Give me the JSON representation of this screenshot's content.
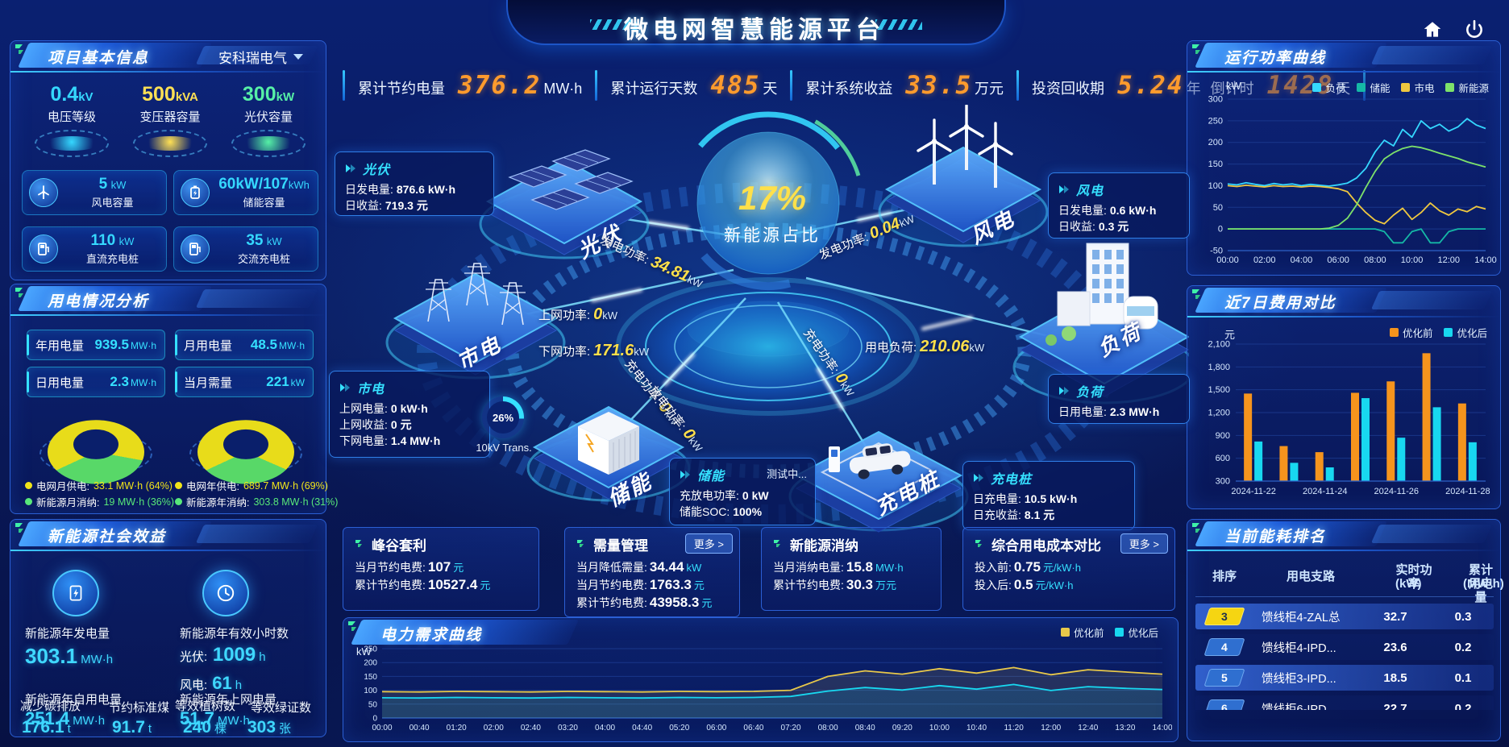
{
  "app": {
    "title": "微电网智慧能源平台"
  },
  "topbar": {
    "kpis": [
      {
        "label": "累计节约电量",
        "value": "376.2",
        "unit": "MW·h"
      },
      {
        "label": "累计运行天数",
        "value": "485",
        "unit": "天"
      },
      {
        "label": "累计系统收益",
        "value": "33.5",
        "unit": "万元"
      },
      {
        "label": "投资回收期",
        "value": "5.24",
        "unit": "年"
      },
      {
        "label": "倒计时",
        "value": "1428",
        "unit": "天"
      }
    ]
  },
  "project": {
    "title": "项目基本信息",
    "company": "安科瑞电气",
    "podiums": [
      {
        "value": "0.4",
        "unit": "kV",
        "label": "电压等级",
        "color": "#35d8ff"
      },
      {
        "value": "500",
        "unit": "kVA",
        "label": "变压器容量",
        "color": "#ffe054"
      },
      {
        "value": "300",
        "unit": "kW",
        "label": "光伏容量",
        "color": "#56f0a6"
      }
    ],
    "cards": [
      {
        "value": "5",
        "unit": "kW",
        "label": "风电容量"
      },
      {
        "value": "60kW/107",
        "unit": "kWh",
        "label": "储能容量"
      },
      {
        "value": "110",
        "unit": "kW",
        "label": "直流充电桩"
      },
      {
        "value": "35",
        "unit": "kW",
        "label": "交流充电桩"
      }
    ]
  },
  "usage": {
    "title": "用电情况分析",
    "stats": [
      {
        "label": "年用电量",
        "value": "939.5",
        "unit": "MW·h"
      },
      {
        "label": "月用电量",
        "value": "48.5",
        "unit": "MW·h"
      },
      {
        "label": "日用电量",
        "value": "2.3",
        "unit": "MW·h"
      },
      {
        "label": "当月需量",
        "value": "221",
        "unit": "kW"
      }
    ],
    "donut_month": {
      "values": [
        64,
        36
      ],
      "colors": [
        "#e8dc1a",
        "#58d868"
      ]
    },
    "donut_year": {
      "values": [
        69,
        31
      ],
      "colors": [
        "#e8dc1a",
        "#58d868"
      ]
    },
    "legend": [
      {
        "label": "电网月供电:",
        "value": "33.1 MW·h (64%)"
      },
      {
        "label": "新能源月消纳:",
        "value": "19 MW·h (36%)"
      },
      {
        "label": "电网年供电:",
        "value": "689.7 MW·h (69%)"
      },
      {
        "label": "新能源年消纳:",
        "value": "303.8 MW·h (31%)"
      }
    ]
  },
  "benefits": {
    "title": "新能源社会效益",
    "gen_label": "新能源年发电量",
    "gen_value": "303.1",
    "gen_unit": "MW·h",
    "hours_label": "新能源年有效小时数",
    "pv_hours_label": "光伏:",
    "pv_hours_value": "1009",
    "pv_hours_unit": "h",
    "wind_hours_label": "风电:",
    "wind_hours_value": "61",
    "wind_hours_unit": "h",
    "self_label": "新能源年自用电量",
    "self_value": "251.4",
    "self_unit": "MW·h",
    "carbon_label": "减少碳排放",
    "carbon_value": "176.1",
    "carbon_unit": "t",
    "coal_label": "节约标准煤",
    "coal_value": "91.7",
    "coal_unit": "t",
    "feed_label": "新能源年上网电量",
    "feed_value": "51.7",
    "feed_unit": "MW·h",
    "trees_label": "等效植树数",
    "trees_value": "240",
    "trees_unit": "棵",
    "certs_label": "等效绿证数",
    "certs_value": "303",
    "certs_unit": "张"
  },
  "center": {
    "core_value": "17%",
    "core_label": "新能源占比",
    "nodes": {
      "pv": "光伏",
      "wind": "风电",
      "grid": "市电",
      "storage": "储能",
      "charger": "充电桩",
      "load": "负荷"
    },
    "flows": {
      "pv_gen": {
        "label": "发电功率:",
        "value": "34.81",
        "unit": "kW"
      },
      "wind_gen": {
        "label": "发电功率:",
        "value": "0.04",
        "unit": "kW"
      },
      "feed_in": {
        "label": "上网功率:",
        "value": "0",
        "unit": "kW"
      },
      "feed_down": {
        "label": "下网功率:",
        "value": "171.6",
        "unit": "kW"
      },
      "load_power": {
        "label": "用电负荷:",
        "value": "210.06",
        "unit": "kW"
      },
      "st_charge": {
        "label": "充电功率:",
        "value": "0",
        "unit": "kW"
      },
      "st_discharge": {
        "label": "放电功率:",
        "value": "0",
        "unit": "kW"
      },
      "ch_charge": {
        "label": "充电功率:",
        "value": "0",
        "unit": "kW"
      }
    },
    "gauge": {
      "value": "26%",
      "caption": "10kV Trans."
    },
    "cards": {
      "pv": {
        "title": "光伏",
        "rows": [
          {
            "k": "日发电量:",
            "v": "876.6 kW·h"
          },
          {
            "k": "日收益:",
            "v": "719.3 元"
          }
        ]
      },
      "grid": {
        "title": "市电",
        "rows": [
          {
            "k": "上网电量:",
            "v": "0 kW·h"
          },
          {
            "k": "上网收益:",
            "v": "0 元"
          },
          {
            "k": "下网电量:",
            "v": "1.4 MW·h"
          }
        ]
      },
      "wind": {
        "title": "风电",
        "rows": [
          {
            "k": "日发电量:",
            "v": "0.6 kW·h"
          },
          {
            "k": "日收益:",
            "v": "0.3 元"
          }
        ]
      },
      "load": {
        "title": "负荷",
        "rows": [
          {
            "k": "日用电量:",
            "v": "2.3 MW·h"
          }
        ]
      },
      "storage": {
        "title": "储能",
        "status": "测试中...",
        "rows": [
          {
            "k": "充放电功率:",
            "v": "0 kW"
          },
          {
            "k": "储能SOC:",
            "v": "100%"
          }
        ]
      },
      "charger": {
        "title": "充电桩",
        "rows": [
          {
            "k": "日充电量:",
            "v": "10.5 kW·h"
          },
          {
            "k": "日充收益:",
            "v": "8.1 元"
          }
        ]
      }
    }
  },
  "summaries": {
    "more_label": "更多 >",
    "cards": [
      {
        "title": "峰谷套利",
        "rows": [
          {
            "k": "当月节约电费:",
            "v": "107",
            "u": "元"
          },
          {
            "k": "累计节约电费:",
            "v": "10527.4",
            "u": "元"
          }
        ]
      },
      {
        "title": "需量管理",
        "rows": [
          {
            "k": "当月降低需量:",
            "v": "34.44",
            "u": "kW"
          },
          {
            "k": "当月节约电费:",
            "v": "1763.3",
            "u": "元"
          },
          {
            "k": "累计节约电费:",
            "v": "43958.3",
            "u": "元"
          }
        ]
      },
      {
        "title": "新能源消纳",
        "rows": [
          {
            "k": "当月消纳电量:",
            "v": "15.8",
            "u": "MW·h"
          },
          {
            "k": "累计节约电费:",
            "v": "30.3",
            "u": "万元"
          }
        ]
      },
      {
        "title": "综合用电成本对比",
        "rows": [
          {
            "k": "投入前:",
            "v": "0.75",
            "u": "元/kW·h"
          },
          {
            "k": "投入后:",
            "v": "0.5",
            "u": "元/kW·h"
          }
        ]
      }
    ]
  },
  "ranking": {
    "title": "当前能耗排名",
    "headers": {
      "rank": "排序",
      "branch": "用电支路",
      "power": "实时功率",
      "power_unit": "(kW)",
      "energy": "累计用电量",
      "energy_unit": "(MW·h)"
    },
    "rows": [
      {
        "rank": "3",
        "branch": "馈线柜4-ZAL总",
        "power": "32.7",
        "energy": "0.3"
      },
      {
        "rank": "4",
        "branch": "馈线柜4-IPD...",
        "power": "23.6",
        "energy": "0.2"
      },
      {
        "rank": "5",
        "branch": "馈线柜3-IPD...",
        "power": "18.5",
        "energy": "0.1"
      },
      {
        "rank": "6",
        "branch": "馈线柜6-IPD",
        "power": "22.7",
        "energy": "0.2"
      }
    ]
  },
  "chart_data": [
    {
      "id": "run_power",
      "type": "line",
      "title": "运行功率曲线",
      "unit": "kW",
      "ylim": [
        -50,
        300
      ],
      "yticks": [
        300,
        250,
        200,
        150,
        100,
        50,
        0,
        -50
      ],
      "x": [
        "00:00",
        "02:00",
        "04:00",
        "06:00",
        "08:00",
        "10:00",
        "12:00",
        "14:00"
      ],
      "legend_position": "top",
      "series": [
        {
          "name": "负荷",
          "color": "#35d8ff",
          "values": [
            104,
            102,
            107,
            103,
            100,
            105,
            102,
            104,
            100,
            103,
            101,
            99,
            102,
            106,
            118,
            140,
            178,
            205,
            192,
            230,
            212,
            250,
            232,
            242,
            226,
            236,
            255,
            240,
            232
          ]
        },
        {
          "name": "储能",
          "color": "#15b8a6",
          "values": [
            0,
            0,
            0,
            0,
            0,
            0,
            0,
            0,
            0,
            0,
            0,
            0,
            0,
            0,
            0,
            0,
            0,
            -6,
            -32,
            -32,
            -6,
            0,
            -32,
            -32,
            -6,
            0,
            0,
            0,
            0
          ]
        },
        {
          "name": "市电",
          "color": "#f0c83f",
          "values": [
            100,
            98,
            101,
            99,
            97,
            100,
            98,
            99,
            97,
            99,
            98,
            96,
            93,
            86,
            60,
            38,
            20,
            12,
            32,
            48,
            22,
            38,
            60,
            42,
            32,
            46,
            40,
            52,
            46
          ]
        },
        {
          "name": "新能源",
          "color": "#7de26a",
          "values": [
            0,
            0,
            0,
            0,
            0,
            0,
            0,
            0,
            0,
            0,
            0,
            2,
            8,
            25,
            56,
            96,
            133,
            162,
            176,
            186,
            191,
            188,
            182,
            175,
            169,
            163,
            155,
            149,
            143
          ]
        }
      ]
    },
    {
      "id": "cost_compare",
      "type": "bar",
      "title": "近7日费用对比",
      "unit": "元",
      "ylim": [
        300,
        2100
      ],
      "yticks": [
        2100,
        1800,
        1500,
        1200,
        900,
        600,
        300
      ],
      "categories": [
        "2024-11-22",
        "2024-11-23",
        "2024-11-24",
        "2024-11-25",
        "2024-11-26",
        "2024-11-27",
        "2024-11-28"
      ],
      "xtick_labels": [
        "2024-11-22",
        "2024-11-24",
        "2024-11-26",
        "2024-11-28"
      ],
      "legend_position": "top-right",
      "series": [
        {
          "name": "优化前",
          "color": "#f5941d",
          "values": [
            1450,
            760,
            680,
            1460,
            1610,
            1980,
            1320
          ]
        },
        {
          "name": "优化后",
          "color": "#18d8f0",
          "values": [
            820,
            540,
            480,
            1390,
            870,
            1270,
            810
          ]
        }
      ]
    },
    {
      "id": "demand",
      "type": "line",
      "title": "电力需求曲线",
      "unit": "kW",
      "ylim": [
        0,
        250
      ],
      "yticks": [
        250,
        200,
        150,
        100,
        50,
        0
      ],
      "x": [
        "00:00",
        "00:40",
        "01:20",
        "02:00",
        "02:40",
        "03:20",
        "04:00",
        "04:40",
        "05:20",
        "06:00",
        "06:40",
        "07:20",
        "08:00",
        "08:40",
        "09:20",
        "10:00",
        "10:40",
        "11:20",
        "12:00",
        "12:40",
        "13:20",
        "14:00"
      ],
      "legend_position": "top-right",
      "series": [
        {
          "name": "优化前",
          "color": "#e8c84a",
          "values": [
            95,
            94,
            96,
            95,
            94,
            96,
            95,
            94,
            96,
            95,
            96,
            100,
            150,
            170,
            158,
            178,
            162,
            182,
            156,
            174,
            166,
            158
          ]
        },
        {
          "name": "优化后",
          "color": "#18d8f0",
          "values": [
            73,
            72,
            74,
            73,
            72,
            74,
            73,
            72,
            74,
            73,
            74,
            78,
            97,
            110,
            101,
            117,
            104,
            121,
            99,
            113,
            107,
            103
          ]
        }
      ]
    }
  ]
}
